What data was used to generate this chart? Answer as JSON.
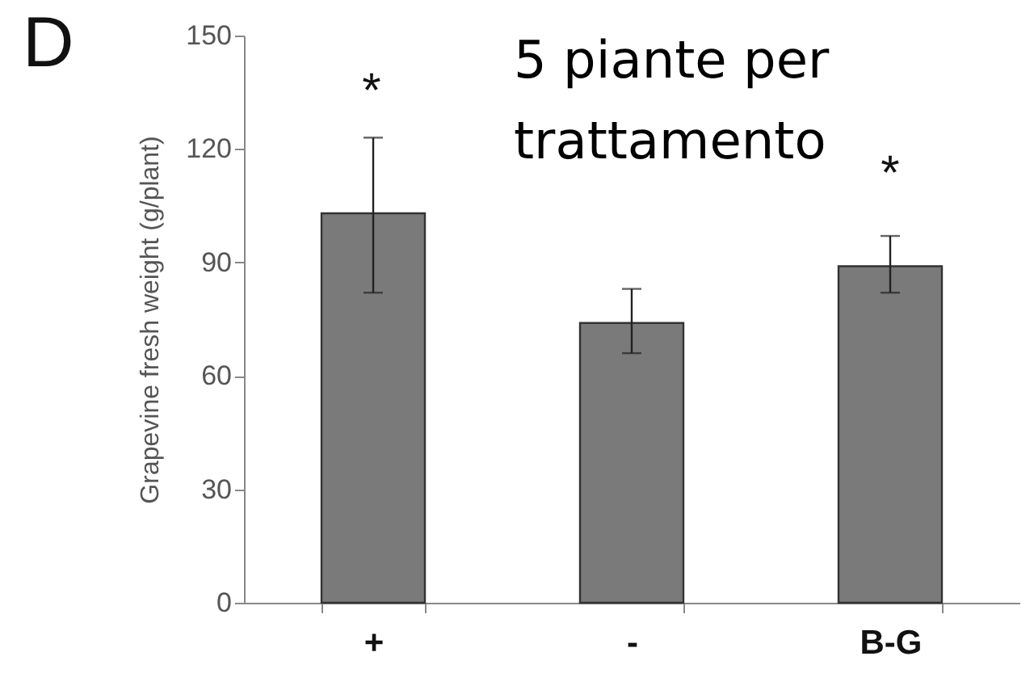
{
  "chart_data": {
    "type": "bar",
    "ylabel": "Grapevine fresh weight (g/plant)",
    "categories": [
      "+",
      "-",
      "B-G"
    ],
    "values": [
      103,
      74,
      89
    ],
    "errors": [
      [
        82,
        123
      ],
      [
        66,
        83
      ],
      [
        82,
        97
      ]
    ],
    "color": "#7a7a7a",
    "ylim": [
      0,
      150
    ],
    "yticks": [
      0,
      30,
      60,
      90,
      120,
      150
    ],
    "grid": false,
    "annotations": [
      "D",
      "5 piante per trattamento",
      "*",
      "*"
    ]
  }
}
